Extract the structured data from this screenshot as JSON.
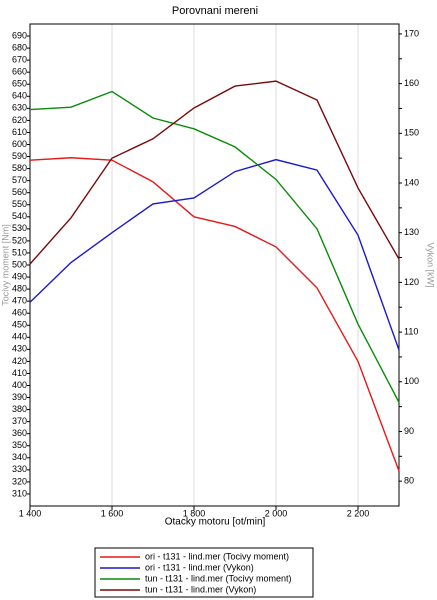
{
  "chart_data": {
    "type": "line",
    "title": "Porovnani mereni",
    "x_label": "Otacky motoru [ot/min]",
    "y_label": "Tocivy moment [Nm]",
    "y2_label": "Vykon [kW]",
    "x": [
      1400,
      1500,
      1600,
      1700,
      1800,
      1900,
      2000,
      2100,
      2200,
      2300
    ],
    "xlim": [
      1400,
      2300
    ],
    "xticks": [
      {
        "value": 1400,
        "label": "1 400"
      },
      {
        "value": 1600,
        "label": "1 600"
      },
      {
        "value": 1800,
        "label": "1 800"
      },
      {
        "value": 2000,
        "label": "2 000"
      },
      {
        "value": 2200,
        "label": "2 200"
      }
    ],
    "ylim": [
      300,
      700
    ],
    "yticks": [
      310,
      320,
      330,
      340,
      350,
      360,
      370,
      380,
      390,
      400,
      410,
      420,
      430,
      440,
      450,
      460,
      470,
      480,
      490,
      500,
      510,
      520,
      530,
      540,
      550,
      560,
      570,
      580,
      590,
      600,
      610,
      620,
      630,
      640,
      650,
      660,
      670,
      680,
      690
    ],
    "y2lim": [
      75,
      172
    ],
    "y2ticks": [
      80,
      85,
      90,
      95,
      100,
      105,
      110,
      115,
      120,
      125,
      130,
      135,
      140,
      145,
      150,
      155,
      160,
      165,
      170
    ],
    "grid": "x",
    "series": [
      {
        "name": "ori - t131 - lind.mer  (Tocivy moment)",
        "color": "#e41a1a",
        "values": [
          587,
          589,
          587,
          569,
          540,
          532,
          515,
          481,
          420,
          329
        ]
      },
      {
        "name": "ori - t131 - lind.mer  (Vykon)",
        "color": "#1a1ac8",
        "axis": "y2",
        "values": [
          116,
          124,
          130,
          135.8,
          137,
          142.3,
          144.7,
          142.6,
          129.5,
          106.4
        ]
      },
      {
        "name": "tun - t131 - lind.mer  (Tocivy moment)",
        "color": "#0a8a0a",
        "values": [
          629,
          631,
          644,
          622,
          613,
          598,
          571,
          530,
          451,
          386
        ]
      },
      {
        "name": "tun - t131 - lind.mer  (Vykon)",
        "color": "#7a0a0a",
        "axis": "y2",
        "values": [
          123.7,
          133,
          145,
          148.9,
          155.1,
          159.5,
          160.5,
          156.7,
          139,
          124.7
        ]
      }
    ]
  }
}
